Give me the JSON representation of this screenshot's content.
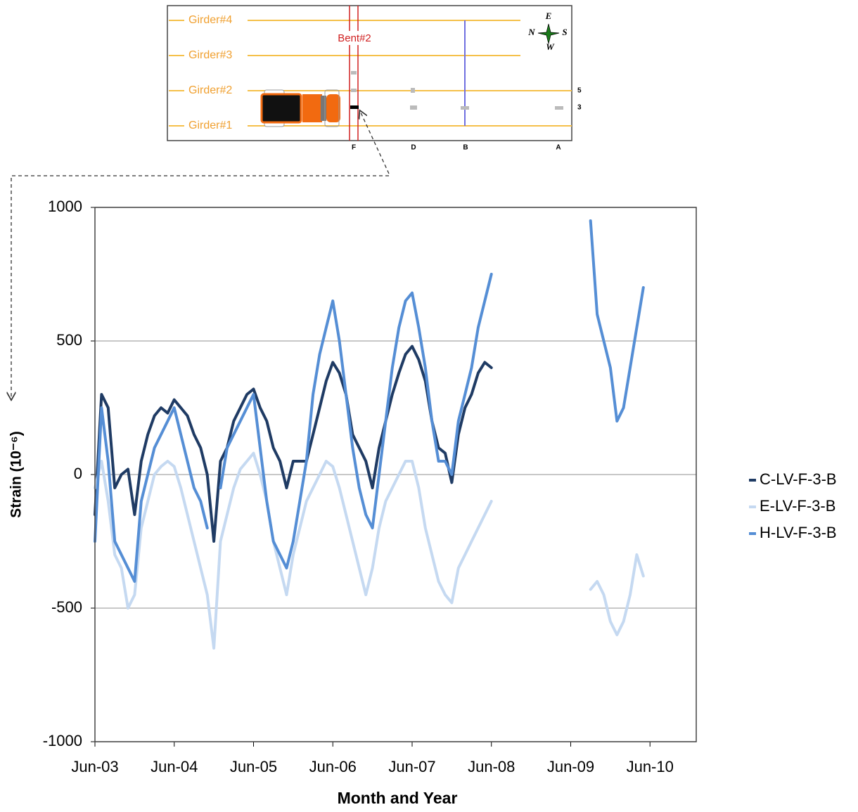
{
  "chart_data": {
    "type": "line",
    "y_label": "Strain (10⁻⁶)",
    "x_label": "Month and Year",
    "x": [
      "Jun-03",
      "Jul-03",
      "Aug-03",
      "Sep-03",
      "Oct-03",
      "Nov-03",
      "Dec-03",
      "Jan-04",
      "Feb-04",
      "Mar-04",
      "Apr-04",
      "May-04",
      "Jun-04",
      "Jul-04",
      "Aug-04",
      "Sep-04",
      "Oct-04",
      "Nov-04",
      "Dec-04",
      "Jan-05",
      "Feb-05",
      "Mar-05",
      "Apr-05",
      "May-05",
      "Jun-05",
      "Jul-05",
      "Aug-05",
      "Sep-05",
      "Oct-05",
      "Nov-05",
      "Dec-05",
      "Jan-06",
      "Feb-06",
      "Mar-06",
      "Apr-06",
      "May-06",
      "Jun-06",
      "Jul-06",
      "Aug-06",
      "Sep-06",
      "Oct-06",
      "Nov-06",
      "Dec-06",
      "Jan-07",
      "Feb-07",
      "Mar-07",
      "Apr-07",
      "May-07",
      "Jun-07",
      "Jul-07",
      "Aug-07",
      "Sep-07",
      "Oct-07",
      "Nov-07",
      "Dec-07",
      "Jan-08",
      "Feb-08",
      "Mar-08",
      "Apr-08",
      "May-08",
      "Jun-08",
      "Jul-08",
      "Aug-08",
      "Sep-08",
      "Oct-08",
      "Nov-08",
      "Dec-08",
      "Jan-09",
      "Feb-09",
      "Mar-09",
      "Apr-09",
      "May-09",
      "Jun-09",
      "Jul-09",
      "Aug-09",
      "Sep-09",
      "Oct-09",
      "Nov-09",
      "Dec-09",
      "Jan-10",
      "Feb-10",
      "Mar-10",
      "Apr-10",
      "May-10"
    ],
    "series": [
      {
        "name": "C-LV-F-3-B",
        "color": "#1f3b64",
        "values": [
          -150,
          300,
          250,
          -50,
          0,
          20,
          -150,
          50,
          150,
          220,
          250,
          230,
          280,
          250,
          220,
          150,
          100,
          0,
          -250,
          50,
          100,
          200,
          250,
          300,
          320,
          250,
          200,
          100,
          50,
          -50,
          50,
          50,
          50,
          150,
          250,
          350,
          420,
          380,
          300,
          150,
          100,
          50,
          -50,
          100,
          200,
          300,
          380,
          450,
          480,
          430,
          350,
          200,
          100,
          80,
          -30,
          150,
          250,
          300,
          380,
          420,
          400,
          null,
          null,
          null,
          null,
          null,
          null,
          null,
          null,
          null,
          null,
          null,
          null,
          null,
          null,
          null,
          null,
          null,
          null,
          null,
          null,
          null,
          null,
          null
        ]
      },
      {
        "name": "E-LV-F-3-B",
        "color": "#c5d9f1",
        "values": [
          -50,
          50,
          -100,
          -300,
          -350,
          -500,
          -450,
          -200,
          -100,
          0,
          30,
          50,
          30,
          -50,
          -150,
          -250,
          -350,
          -450,
          -650,
          -250,
          -150,
          -50,
          20,
          50,
          80,
          0,
          -100,
          -250,
          -350,
          -450,
          -300,
          -200,
          -100,
          -50,
          0,
          50,
          30,
          -50,
          -150,
          -250,
          -350,
          -450,
          -350,
          -200,
          -100,
          -50,
          0,
          50,
          50,
          -50,
          -200,
          -300,
          -400,
          -450,
          -480,
          -350,
          -300,
          -250,
          -200,
          -150,
          -100,
          null,
          null,
          null,
          null,
          null,
          null,
          null,
          null,
          null,
          null,
          null,
          null,
          null,
          null,
          -430,
          -400,
          -450,
          -550,
          -600,
          -550,
          -450,
          -300,
          -380
        ]
      },
      {
        "name": "H-LV-F-3-B",
        "color": "#558ed5",
        "values": [
          -250,
          250,
          50,
          -250,
          -300,
          -350,
          -400,
          -100,
          0,
          100,
          150,
          200,
          250,
          150,
          50,
          -50,
          -100,
          -200,
          null,
          -50,
          100,
          150,
          200,
          250,
          300,
          100,
          -100,
          -250,
          -300,
          -350,
          -250,
          -100,
          50,
          300,
          450,
          550,
          650,
          500,
          300,
          100,
          -50,
          -150,
          -200,
          0,
          200,
          400,
          550,
          650,
          680,
          550,
          400,
          200,
          50,
          50,
          0,
          200,
          300,
          400,
          550,
          650,
          750,
          null,
          null,
          null,
          null,
          null,
          null,
          null,
          null,
          null,
          null,
          null,
          null,
          null,
          null,
          950,
          600,
          500,
          400,
          200,
          250,
          400,
          550,
          700
        ]
      }
    ],
    "xlim": [
      "Jun-03",
      "Jan-11"
    ],
    "xticks": [
      "Jun-03",
      "Jun-04",
      "Jun-05",
      "Jun-06",
      "Jun-07",
      "Jun-08",
      "Jun-09",
      "Jun-10"
    ],
    "ylim": [
      -1000,
      1000
    ],
    "yticks": [
      -1000,
      -500,
      0,
      500,
      1000
    ],
    "grid": true,
    "legend": "right"
  },
  "inset": {
    "girders": [
      "Girder#4",
      "Girder#3",
      "Girder#2",
      "Girder#1"
    ],
    "bent": "Bent#2",
    "sections": [
      "F",
      "D",
      "B",
      "A"
    ],
    "levels": [
      "5",
      "3"
    ],
    "compass": [
      "E",
      "N",
      "S",
      "W"
    ]
  }
}
